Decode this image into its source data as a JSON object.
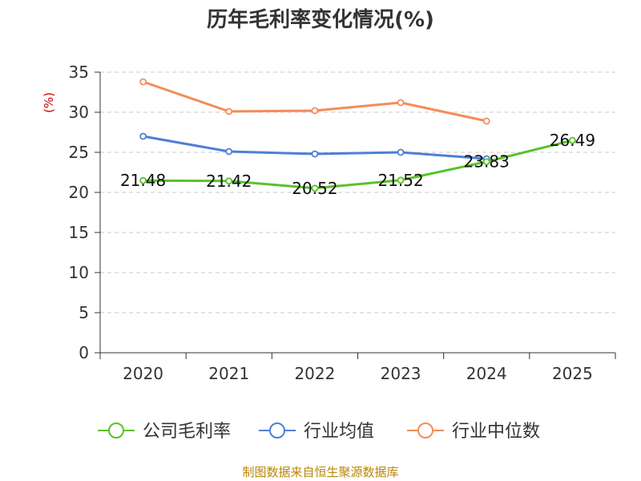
{
  "chart_data": {
    "type": "line",
    "title": "历年毛利率变化情况(%)",
    "unit_label": "(%)",
    "categories": [
      "2020",
      "2021",
      "2022",
      "2023",
      "2024",
      "2025"
    ],
    "ylim": [
      0,
      35
    ],
    "yticks": [
      0,
      5,
      10,
      15,
      20,
      25,
      30,
      35
    ],
    "grid": true,
    "legend_position": "bottom",
    "series": [
      {
        "name": "公司毛利率",
        "color": "#5ac229",
        "values": [
          21.48,
          21.42,
          20.52,
          21.52,
          23.83,
          26.49
        ],
        "labels": [
          "21.48",
          "21.42",
          "20.52",
          "21.52",
          "23.83",
          "26.49"
        ]
      },
      {
        "name": "行业均值",
        "color": "#4e7fd6",
        "values": [
          27.0,
          25.1,
          24.8,
          25.0,
          24.2,
          null
        ]
      },
      {
        "name": "行业中位数",
        "color": "#f48c5a",
        "values": [
          33.8,
          30.1,
          30.2,
          31.2,
          28.9,
          null
        ]
      }
    ]
  },
  "source": "制图数据来自恒生聚源数据库"
}
